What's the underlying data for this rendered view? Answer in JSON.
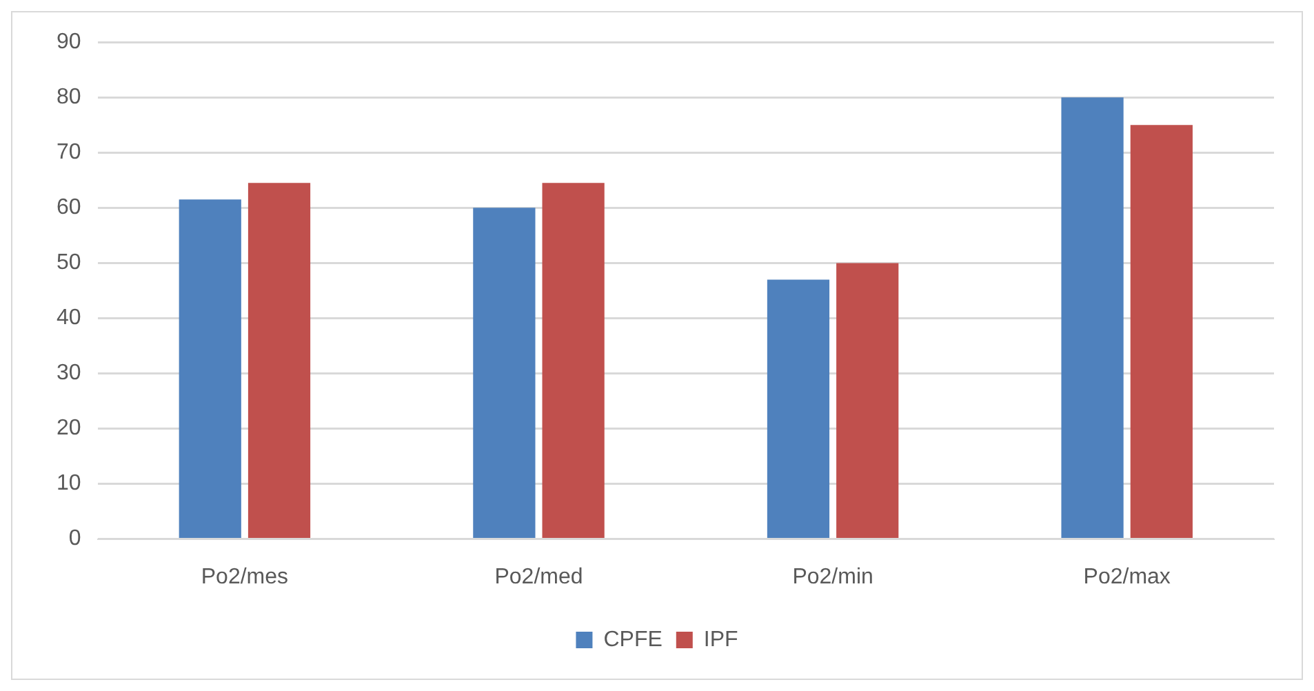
{
  "chart_data": {
    "type": "bar",
    "categories": [
      "Po2/mes",
      "Po2/med",
      "Po2/min",
      "Po2/max"
    ],
    "series": [
      {
        "name": "CPFE",
        "color": "#4f81bd",
        "values": [
          61.5,
          60,
          47,
          80
        ]
      },
      {
        "name": "IPF",
        "color": "#c0504d",
        "values": [
          64.5,
          64.5,
          50,
          75
        ]
      }
    ],
    "ylim": [
      0,
      90
    ],
    "yticks": [
      0,
      10,
      20,
      30,
      40,
      50,
      60,
      70,
      80,
      90
    ],
    "grid": "y",
    "legend": "bottom"
  }
}
